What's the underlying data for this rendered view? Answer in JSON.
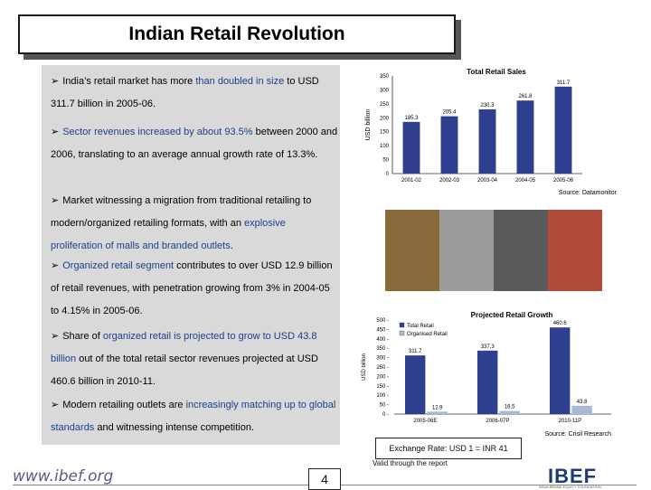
{
  "header": {
    "title": "Indian Retail Revolution"
  },
  "bullets": [
    {
      "pre": "India’s retail market has more ",
      "hl": "than doubled in size",
      "post": " to USD 311.7 billion in 2005-06."
    },
    {
      "pre": "",
      "hl": "Sector revenues increased by about 93.5%",
      "post": " between 2000 and 2006, translating to an average annual growth rate of 13.3%."
    },
    {
      "pre": "Market witnessing a migration from traditional retailing to modern/organized retailing formats, with an ",
      "hl": "explosive proliferation of malls and branded outlets",
      "post": "."
    },
    {
      "pre": "",
      "hl": "Organized retail segment",
      "post": " contributes to over USD 12.9 billion of retail revenues, with penetration growing from 3% in 2004-05 to 4.15% in 2005-06."
    },
    {
      "pre": "Share of ",
      "hl": "organized retail is projected to grow to USD 43.8 billion",
      "post": " out of the total retail sector revenues projected at USD 460.6 billion in 2010-11."
    },
    {
      "pre": "Modern retailing outlets are ",
      "hl": "increasingly matching up to global standards",
      "post": " and witnessing intense competition."
    }
  ],
  "chart_data": [
    {
      "type": "bar",
      "title": "Total Retail Sales",
      "ylabel": "USD billion",
      "xlabel": "",
      "categories": [
        "2001-02",
        "2002-03",
        "2003-04",
        "2004-05",
        "2005-06"
      ],
      "values": [
        185.3,
        205.4,
        230.3,
        261.8,
        311.7
      ],
      "ylim": [
        0,
        350
      ],
      "yticks": [
        0,
        50,
        100,
        150,
        200,
        250,
        300,
        350
      ],
      "source": "Source: Datamonitor",
      "bar_color": "#2e3f8f"
    },
    {
      "type": "bar",
      "title": "Projected Retail Growth",
      "ylabel": "USD billion",
      "xlabel": "",
      "categories": [
        "2005-06E",
        "2006-07P",
        "2010-11P"
      ],
      "series": [
        {
          "name": "Total Retail",
          "values": [
            311.7,
            337.3,
            460.6
          ]
        },
        {
          "name": "Organised Retail",
          "values": [
            12.9,
            16.5,
            43.8
          ]
        }
      ],
      "ylim": [
        0,
        500
      ],
      "yticks": [
        0,
        50,
        100,
        150,
        200,
        250,
        300,
        350,
        400,
        450,
        500
      ],
      "legend": "top-left",
      "source": "Source: Crisil Research",
      "colors": [
        "#2e3f8f",
        "#a8b8d8"
      ]
    }
  ],
  "footer": {
    "exchange": "Exchange Rate: USD 1 = INR 41",
    "valid": "Valid through the report",
    "url": "www.ibef.org",
    "page": "4",
    "logo": "IBEF",
    "logo_sub": "INDIA BRAND EQUITY FOUNDATION"
  }
}
